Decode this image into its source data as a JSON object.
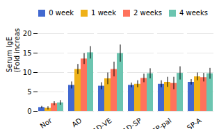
{
  "chart_data": {
    "type": "bar",
    "ylabel": "Serum IgE\n(Fold increase)",
    "categories": [
      "Nor",
      "AD",
      "AD-VE",
      "AD-SP",
      "AD-SP-pal",
      "AD-SP-A"
    ],
    "series": [
      {
        "name": "0 week",
        "values": [
          1.0,
          6.7,
          6.5,
          6.7,
          7.0,
          7.5
        ],
        "errors": [
          0.3,
          0.9,
          0.9,
          0.6,
          0.9,
          0.7
        ]
      },
      {
        "name": "1 week",
        "values": [
          0.8,
          10.8,
          8.4,
          7.0,
          7.5,
          8.9
        ],
        "errors": [
          0.4,
          1.3,
          1.5,
          0.9,
          1.3,
          1.0
        ]
      },
      {
        "name": "2 weeks",
        "values": [
          2.0,
          13.5,
          10.8,
          8.5,
          7.2,
          8.7
        ],
        "errors": [
          0.5,
          1.4,
          1.9,
          1.1,
          1.6,
          1.1
        ]
      },
      {
        "name": "4 weeks",
        "values": [
          2.2,
          15.1,
          14.9,
          9.7,
          9.8,
          9.7
        ],
        "errors": [
          0.6,
          1.6,
          2.2,
          1.3,
          1.7,
          1.4
        ]
      }
    ],
    "ylim": [
      0,
      20
    ],
    "yticks": [
      0,
      5,
      10,
      15,
      20
    ],
    "grid": true,
    "legend": "upper right"
  }
}
